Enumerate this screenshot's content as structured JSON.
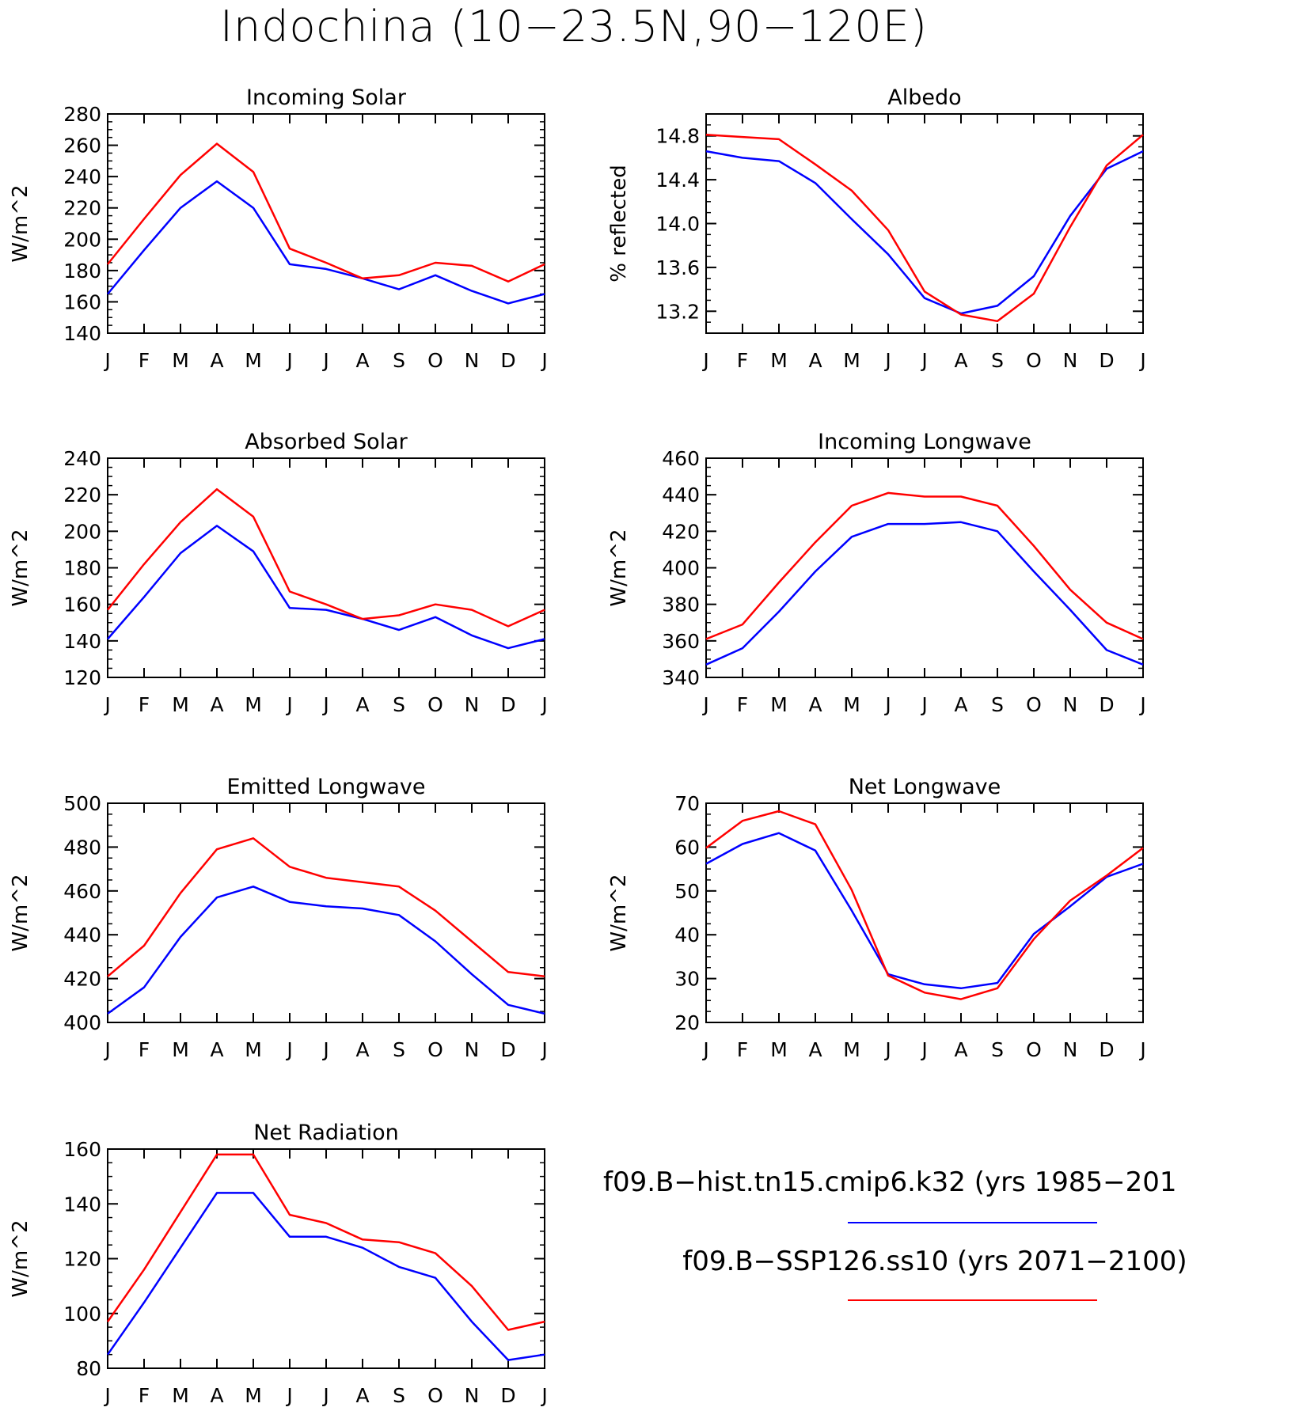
{
  "title": "Indochina (10−23.5N,90−120E)",
  "months": [
    "J",
    "F",
    "M",
    "A",
    "M",
    "J",
    "J",
    "A",
    "S",
    "O",
    "N",
    "D",
    "J"
  ],
  "colors": {
    "hist": "#0000ff",
    "ssp": "#ff0000",
    "axes": "#000000"
  },
  "legend": [
    {
      "label": "f09.B−hist.tn15.cmip6.k32 (yrs 1985−201",
      "color": "#0000ff"
    },
    {
      "label": "f09.B−SSP126.ss10 (yrs 2071−2100)",
      "color": "#ff0000"
    }
  ],
  "chart_data": [
    {
      "type": "line",
      "title": "Incoming Solar",
      "ylabel": "W/m^2",
      "ylim": [
        140,
        280
      ],
      "yticks": [
        "140",
        "160",
        "180",
        "200",
        "220",
        "240",
        "260",
        "280"
      ],
      "x": [
        "J",
        "F",
        "M",
        "A",
        "M",
        "J",
        "J",
        "A",
        "S",
        "O",
        "N",
        "D",
        "J"
      ],
      "series": [
        {
          "values": [
            165,
            193,
            220,
            237,
            220,
            184,
            181,
            175,
            168,
            177,
            167,
            159,
            165
          ]
        },
        {
          "values": [
            184,
            213,
            241,
            261,
            243,
            194,
            185,
            175,
            177,
            185,
            183,
            173,
            184
          ]
        }
      ]
    },
    {
      "type": "line",
      "title": "Albedo",
      "ylabel": "% reflected",
      "ylim": [
        13.0,
        15.0
      ],
      "yticks": [
        "13.2",
        "13.6",
        "14.0",
        "14.4",
        "14.8"
      ],
      "x": [
        "J",
        "F",
        "M",
        "A",
        "M",
        "J",
        "J",
        "A",
        "S",
        "O",
        "N",
        "D",
        "J"
      ],
      "series": [
        {
          "values": [
            14.66,
            14.6,
            14.57,
            14.37,
            14.04,
            13.72,
            13.32,
            13.18,
            13.25,
            13.52,
            14.07,
            14.5,
            14.66
          ]
        },
        {
          "values": [
            14.81,
            14.79,
            14.77,
            14.54,
            14.3,
            13.94,
            13.38,
            13.17,
            13.11,
            13.36,
            13.97,
            14.53,
            14.81
          ]
        }
      ]
    },
    {
      "type": "line",
      "title": "Absorbed Solar",
      "ylabel": "W/m^2",
      "ylim": [
        120,
        240
      ],
      "yticks": [
        "120",
        "140",
        "160",
        "180",
        "200",
        "220",
        "240"
      ],
      "x": [
        "J",
        "F",
        "M",
        "A",
        "M",
        "J",
        "J",
        "A",
        "S",
        "O",
        "N",
        "D",
        "J"
      ],
      "series": [
        {
          "values": [
            141,
            164,
            188,
            203,
            189,
            158,
            157,
            152,
            146,
            153,
            143,
            136,
            141
          ]
        },
        {
          "values": [
            157,
            182,
            205,
            223,
            208,
            167,
            160,
            152,
            154,
            160,
            157,
            148,
            157
          ]
        }
      ]
    },
    {
      "type": "line",
      "title": "Incoming Longwave",
      "ylabel": "W/m^2",
      "ylim": [
        340,
        460
      ],
      "yticks": [
        "340",
        "360",
        "380",
        "400",
        "420",
        "440",
        "460"
      ],
      "x": [
        "J",
        "F",
        "M",
        "A",
        "M",
        "J",
        "J",
        "A",
        "S",
        "O",
        "N",
        "D",
        "J"
      ],
      "series": [
        {
          "values": [
            347,
            356,
            376,
            398,
            417,
            424,
            424,
            425,
            420,
            398,
            377,
            355,
            347
          ]
        },
        {
          "values": [
            361,
            369,
            392,
            414,
            434,
            441,
            439,
            439,
            434,
            412,
            388,
            370,
            361
          ]
        }
      ]
    },
    {
      "type": "line",
      "title": "Emitted Longwave",
      "ylabel": "W/m^2",
      "ylim": [
        400,
        500
      ],
      "yticks": [
        "400",
        "420",
        "440",
        "460",
        "480",
        "500"
      ],
      "x": [
        "J",
        "F",
        "M",
        "A",
        "M",
        "J",
        "J",
        "A",
        "S",
        "O",
        "N",
        "D",
        "J"
      ],
      "series": [
        {
          "values": [
            404,
            416,
            439,
            457,
            462,
            455,
            453,
            452,
            449,
            437,
            422,
            408,
            404
          ]
        },
        {
          "values": [
            421,
            435,
            459,
            479,
            484,
            471,
            466,
            464,
            462,
            451,
            437,
            423,
            421
          ]
        }
      ]
    },
    {
      "type": "line",
      "title": "Net Longwave",
      "ylabel": "W/m^2",
      "ylim": [
        20,
        70
      ],
      "yticks": [
        "20",
        "30",
        "40",
        "50",
        "60",
        "70"
      ],
      "x": [
        "J",
        "F",
        "M",
        "A",
        "M",
        "J",
        "J",
        "A",
        "S",
        "O",
        "N",
        "D",
        "J"
      ],
      "series": [
        {
          "values": [
            56.2,
            60.7,
            63.2,
            59.2,
            45.5,
            31.0,
            28.7,
            27.8,
            29.0,
            40.2,
            46.5,
            53.2,
            56.2
          ]
        },
        {
          "values": [
            59.8,
            66.0,
            68.2,
            65.2,
            50.2,
            30.7,
            26.8,
            25.3,
            27.8,
            39.0,
            47.8,
            53.5,
            59.8
          ]
        }
      ]
    },
    {
      "type": "line",
      "title": "Net Radiation",
      "ylabel": "W/m^2",
      "ylim": [
        80,
        160
      ],
      "yticks": [
        "80",
        "100",
        "120",
        "140",
        "160"
      ],
      "x": [
        "J",
        "F",
        "M",
        "A",
        "M",
        "J",
        "J",
        "A",
        "S",
        "O",
        "N",
        "D",
        "J"
      ],
      "series": [
        {
          "values": [
            85,
            104,
            124,
            144,
            144,
            128,
            128,
            124,
            117,
            113,
            97,
            83,
            85
          ]
        },
        {
          "values": [
            97,
            116,
            137,
            158,
            158,
            136,
            133,
            127,
            126,
            122,
            110,
            94,
            97
          ]
        }
      ]
    }
  ]
}
